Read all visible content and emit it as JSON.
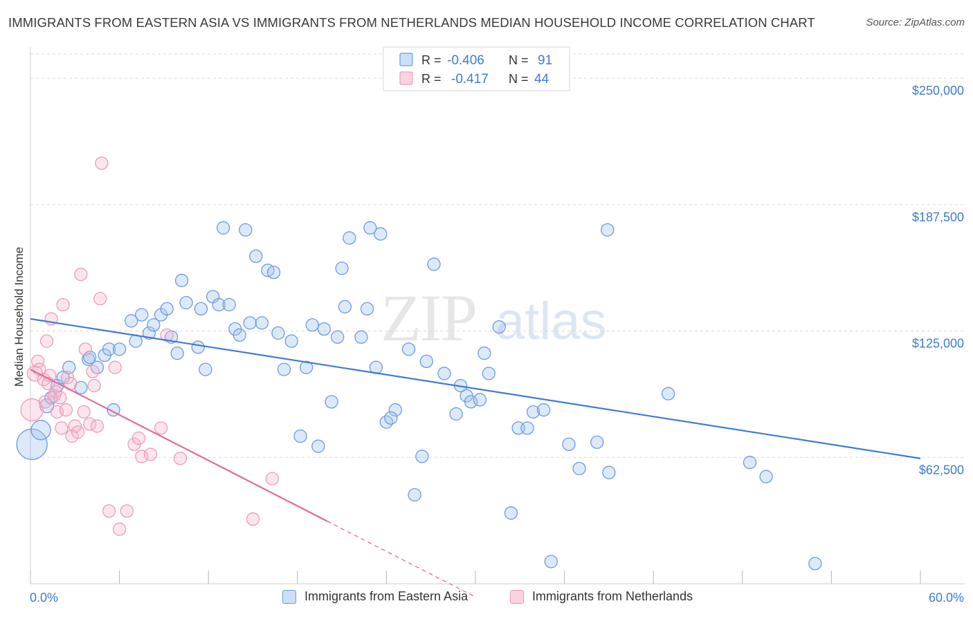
{
  "header": {
    "title": "IMMIGRANTS FROM EASTERN ASIA VS IMMIGRANTS FROM NETHERLANDS MEDIAN HOUSEHOLD INCOME CORRELATION CHART",
    "source": "Source: ZipAtlas.com"
  },
  "watermark": {
    "zip": "ZIP",
    "atlas": "atlas"
  },
  "colors": {
    "blue": "#3d7bd6",
    "blue_fill": "rgba(160,196,240,0.38)",
    "blue_stroke": "#6b9be0",
    "pink": "#e26a97",
    "pink_fill": "rgba(247,180,204,0.35)",
    "pink_stroke": "#ef9ab8",
    "axis_label": "#3d7bd6",
    "grid": "#d9d9d9"
  },
  "stats_legend": {
    "rows": [
      {
        "r_label": "R =",
        "r_value": "-0.406",
        "n_label": "N =",
        "n_value": "91"
      },
      {
        "r_label": "R =",
        "r_value": "-0.417",
        "n_label": "N =",
        "n_value": "44"
      }
    ]
  },
  "bottom_legend": [
    {
      "label": "Immigrants from Eastern Asia"
    },
    {
      "label": "Immigrants from Netherlands"
    }
  ],
  "chart_data": {
    "type": "scatter",
    "ylabel": "Median Household Income",
    "x_tick_labels": [
      "0.0%",
      "60.0%"
    ],
    "y_tick_labels": [
      "$62,500",
      "$125,000",
      "$187,500",
      "$250,000"
    ],
    "xlim": [
      0,
      60
    ],
    "ylim": [
      0,
      262000
    ],
    "y_ticks": [
      62500,
      125000,
      187500,
      250000
    ],
    "x_minor_ticks": [
      0,
      6,
      12,
      18,
      24,
      30,
      36,
      42,
      48,
      54,
      60
    ],
    "series": [
      {
        "name": "Immigrants from Eastern Asia",
        "color": "blue",
        "trend": {
          "x0": 0,
          "y0": 131000,
          "x1": 60,
          "y1": 62000,
          "dash_from": null
        },
        "points": [
          [
            0.1,
            69000,
            22
          ],
          [
            0.7,
            76000,
            14
          ],
          [
            1.1,
            88000,
            10
          ],
          [
            1.4,
            92000,
            9
          ],
          [
            1.8,
            98000,
            9
          ],
          [
            2.2,
            102000,
            9
          ],
          [
            2.6,
            107000,
            9
          ],
          [
            3.4,
            97000,
            9
          ],
          [
            3.9,
            111000,
            9
          ],
          [
            4.5,
            107000,
            9
          ],
          [
            4.0,
            112000,
            9
          ],
          [
            5.0,
            113000,
            9
          ],
          [
            5.3,
            116000,
            9
          ],
          [
            5.6,
            86000,
            9
          ],
          [
            6.0,
            116000,
            9
          ],
          [
            6.8,
            130000,
            9
          ],
          [
            7.1,
            120000,
            9
          ],
          [
            7.5,
            133000,
            9
          ],
          [
            8.0,
            124000,
            9
          ],
          [
            8.3,
            128000,
            9
          ],
          [
            8.8,
            133000,
            9
          ],
          [
            9.2,
            136000,
            9
          ],
          [
            9.5,
            122000,
            9
          ],
          [
            9.9,
            114000,
            9
          ],
          [
            10.2,
            150000,
            9
          ],
          [
            10.5,
            139000,
            9
          ],
          [
            11.3,
            117000,
            9
          ],
          [
            11.5,
            136000,
            9
          ],
          [
            11.8,
            106000,
            9
          ],
          [
            12.3,
            142000,
            9
          ],
          [
            12.7,
            138000,
            9
          ],
          [
            13.0,
            176000,
            9
          ],
          [
            13.4,
            138000,
            9
          ],
          [
            13.8,
            126000,
            9
          ],
          [
            14.1,
            123000,
            9
          ],
          [
            14.5,
            175000,
            9
          ],
          [
            14.8,
            129000,
            9
          ],
          [
            15.2,
            162000,
            9
          ],
          [
            15.6,
            129000,
            9
          ],
          [
            16.0,
            155000,
            9
          ],
          [
            16.4,
            154000,
            9
          ],
          [
            16.7,
            124000,
            9
          ],
          [
            17.1,
            106000,
            9
          ],
          [
            17.6,
            120000,
            9
          ],
          [
            18.2,
            73000,
            9
          ],
          [
            18.6,
            107000,
            9
          ],
          [
            19.0,
            128000,
            9
          ],
          [
            19.4,
            68000,
            9
          ],
          [
            19.8,
            126000,
            9
          ],
          [
            20.3,
            90000,
            9
          ],
          [
            20.7,
            122000,
            9
          ],
          [
            21.0,
            156000,
            9
          ],
          [
            21.5,
            171000,
            9
          ],
          [
            22.3,
            122000,
            9
          ],
          [
            22.7,
            136000,
            9
          ],
          [
            22.9,
            176000,
            9
          ],
          [
            23.3,
            107000,
            9
          ],
          [
            23.6,
            173000,
            9
          ],
          [
            24.0,
            80000,
            9
          ],
          [
            24.6,
            86000,
            9
          ],
          [
            25.5,
            116000,
            9
          ],
          [
            25.9,
            44000,
            9
          ],
          [
            26.4,
            63000,
            9
          ],
          [
            26.7,
            110000,
            9
          ],
          [
            27.2,
            158000,
            9
          ],
          [
            27.9,
            104000,
            9
          ],
          [
            28.7,
            84000,
            9
          ],
          [
            29.0,
            98000,
            9
          ],
          [
            29.4,
            93000,
            9
          ],
          [
            29.7,
            90000,
            9
          ],
          [
            30.3,
            91000,
            9
          ],
          [
            30.6,
            114000,
            9
          ],
          [
            30.9,
            104000,
            9
          ],
          [
            31.6,
            127000,
            9
          ],
          [
            32.4,
            35000,
            9
          ],
          [
            32.9,
            77000,
            9
          ],
          [
            33.5,
            77000,
            9
          ],
          [
            33.9,
            85000,
            9
          ],
          [
            34.6,
            86000,
            9
          ],
          [
            35.1,
            11000,
            9
          ],
          [
            36.3,
            69000,
            9
          ],
          [
            37.0,
            57000,
            9
          ],
          [
            38.2,
            70000,
            9
          ],
          [
            38.9,
            175000,
            9
          ],
          [
            39.0,
            55000,
            9
          ],
          [
            43.0,
            94000,
            9
          ],
          [
            48.5,
            60000,
            9
          ],
          [
            49.6,
            53000,
            9
          ],
          [
            52.9,
            10000,
            9
          ],
          [
            24.3,
            82000,
            9
          ],
          [
            21.2,
            137000,
            9
          ]
        ]
      },
      {
        "name": "Immigrants from Netherlands",
        "color": "pink",
        "trend": {
          "x0": 0,
          "y0": 106000,
          "x1": 20,
          "y1": 31000,
          "dash_to": 30
        },
        "points": [
          [
            0.1,
            86000,
            16
          ],
          [
            0.3,
            104000,
            11
          ],
          [
            0.5,
            110000,
            9
          ],
          [
            0.6,
            106000,
            9
          ],
          [
            0.9,
            101000,
            9
          ],
          [
            1.0,
            90000,
            9
          ],
          [
            1.1,
            120000,
            9
          ],
          [
            1.3,
            103000,
            9
          ],
          [
            1.4,
            131000,
            9
          ],
          [
            1.6,
            93000,
            9
          ],
          [
            1.7,
            95000,
            9
          ],
          [
            1.8,
            85000,
            9
          ],
          [
            2.0,
            92000,
            9
          ],
          [
            2.1,
            77000,
            9
          ],
          [
            2.2,
            138000,
            9
          ],
          [
            2.4,
            86000,
            9
          ],
          [
            2.5,
            102000,
            9
          ],
          [
            2.7,
            99000,
            9
          ],
          [
            2.8,
            73000,
            9
          ],
          [
            3.0,
            78000,
            9
          ],
          [
            3.2,
            75000,
            9
          ],
          [
            3.4,
            153000,
            9
          ],
          [
            3.6,
            85000,
            9
          ],
          [
            3.7,
            116000,
            9
          ],
          [
            4.0,
            79000,
            9
          ],
          [
            4.2,
            105000,
            9
          ],
          [
            4.3,
            98000,
            9
          ],
          [
            4.5,
            78000,
            9
          ],
          [
            4.7,
            141000,
            9
          ],
          [
            5.3,
            36000,
            9
          ],
          [
            5.7,
            107000,
            9
          ],
          [
            6.0,
            27000,
            9
          ],
          [
            6.5,
            36000,
            9
          ],
          [
            7.0,
            69000,
            9
          ],
          [
            7.3,
            72000,
            9
          ],
          [
            7.5,
            63000,
            9
          ],
          [
            8.1,
            64000,
            9
          ],
          [
            8.8,
            77000,
            9
          ],
          [
            9.2,
            123000,
            9
          ],
          [
            10.1,
            62000,
            9
          ],
          [
            15.0,
            32000,
            9
          ],
          [
            16.3,
            52000,
            9
          ],
          [
            4.8,
            208000,
            9
          ],
          [
            1.2,
            99000,
            9
          ]
        ]
      }
    ]
  }
}
